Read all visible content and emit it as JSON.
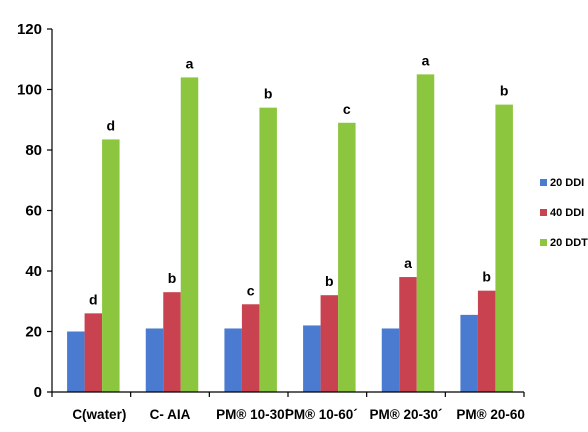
{
  "chart_data": {
    "type": "bar",
    "title": "",
    "xlabel": "",
    "ylabel": "",
    "ylim": [
      0,
      120
    ],
    "yticks": [
      0,
      20,
      40,
      60,
      80,
      100,
      120
    ],
    "grid": false,
    "legend_position": "right",
    "categories": [
      "C(water)",
      "C- AIA",
      "PM® 10-30´",
      "PM® 10-60´",
      "PM® 20-30´",
      "PM® 20-60"
    ],
    "series": [
      {
        "name": "20 DDI",
        "color": "#4a7bd0",
        "values": [
          20,
          21,
          21,
          22,
          21,
          25.5
        ],
        "annotations": [
          "",
          "",
          "",
          "",
          "",
          ""
        ]
      },
      {
        "name": "40 DDI",
        "color": "#c8434f",
        "values": [
          26,
          33,
          29,
          32,
          38,
          33.5
        ],
        "annotations": [
          "d",
          "b",
          "c",
          "b",
          "a",
          "b"
        ]
      },
      {
        "name": "20 DDT",
        "color": "#8cc63f",
        "values": [
          83.5,
          104,
          94,
          89,
          105,
          95
        ],
        "annotations": [
          "d",
          "a",
          "b",
          "c",
          "a",
          "b"
        ]
      }
    ]
  }
}
